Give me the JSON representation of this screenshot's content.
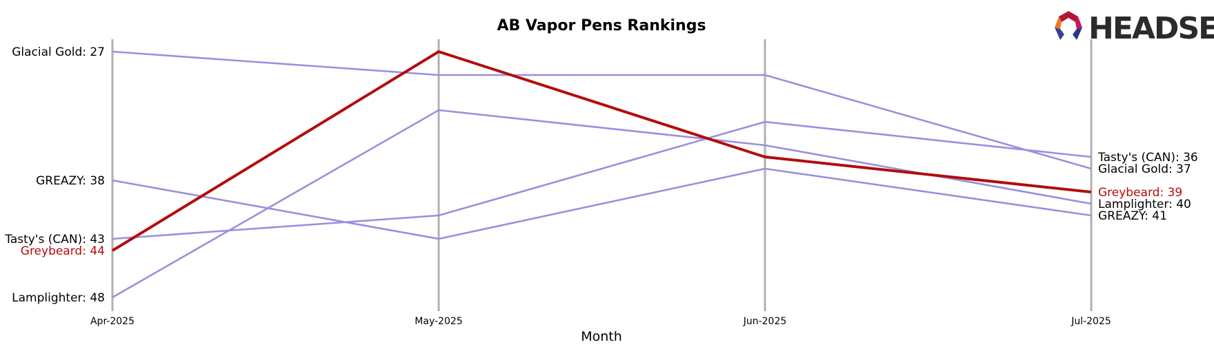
{
  "chart_data": {
    "type": "line",
    "title": "AB Vapor Pens Rankings",
    "xlabel": "Month",
    "ylabel": "",
    "x": [
      "Apr-2025",
      "May-2025",
      "Jun-2025",
      "Jul-2025"
    ],
    "y_inverted": true,
    "ylim": [
      25,
      48
    ],
    "grid": "vertical lines at each month",
    "series": [
      {
        "name": "Glacial Gold",
        "values": [
          27,
          29,
          29,
          37
        ],
        "color": "#9a8fdc",
        "highlight": false
      },
      {
        "name": "GREAZY",
        "values": [
          38,
          43,
          37,
          41
        ],
        "color": "#9a8fdc",
        "highlight": false
      },
      {
        "name": "Tasty's (CAN)",
        "values": [
          43,
          41,
          33,
          36
        ],
        "color": "#9a8fdc",
        "highlight": false
      },
      {
        "name": "Lamplighter",
        "values": [
          48,
          32,
          35,
          40
        ],
        "color": "#9a8fdc",
        "highlight": false
      },
      {
        "name": "Greybeard",
        "values": [
          44,
          27,
          36,
          39
        ],
        "color": "#b30c0c",
        "highlight": true
      }
    ],
    "start_labels": [
      {
        "text": "Glacial Gold: 27",
        "series": "Glacial Gold"
      },
      {
        "text": "GREAZY: 38",
        "series": "GREAZY"
      },
      {
        "text": "Tasty's (CAN): 43",
        "series": "Tasty's (CAN)"
      },
      {
        "text": "Greybeard: 44",
        "series": "Greybeard"
      },
      {
        "text": "Lamplighter: 48",
        "series": "Lamplighter"
      }
    ],
    "end_labels": [
      {
        "text": "Tasty's (CAN): 36",
        "series": "Tasty's (CAN)"
      },
      {
        "text": "Glacial Gold: 37",
        "series": "Glacial Gold"
      },
      {
        "text": "Greybeard: 39",
        "series": "Greybeard"
      },
      {
        "text": "Lamplighter: 40",
        "series": "Lamplighter"
      },
      {
        "text": "GREAZY: 41",
        "series": "GREAZY"
      }
    ]
  },
  "logo": {
    "text": "HEADSET"
  },
  "colors": {
    "axis_line": "#b0b0b0",
    "other_series": "#9a8fdc",
    "highlight": "#b30c0c",
    "label_default": "#000000"
  }
}
